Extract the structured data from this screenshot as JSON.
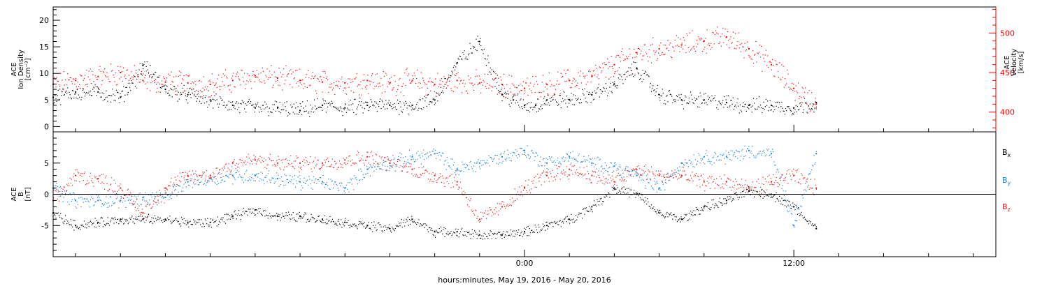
{
  "chart_data": [
    {
      "type": "scatter",
      "xlabel": "hours:minutes, May 19, 2016 - May 20, 2016",
      "x_unit": "hours relative to 2016-05-20 00:00 UT",
      "xlim": [
        -21,
        21
      ],
      "x_ticks": [
        {
          "x": 0,
          "label": "0:00"
        },
        {
          "x": 12,
          "label": "12:00"
        }
      ],
      "ylabel_left": [
        "ACE",
        "Ion Density",
        "[cm⁻³]"
      ],
      "ylim_left": [
        -1,
        22.5
      ],
      "yticks_left": [
        0,
        5,
        10,
        15,
        20
      ],
      "ylabel_right": [
        "ACE",
        "Velocity",
        "[km/s]"
      ],
      "ylim_right": [
        375,
        533
      ],
      "yticks_right": [
        400,
        450,
        500
      ],
      "grid": false,
      "series": [
        {
          "axis": "left",
          "color": "#000000",
          "x": [
            -21,
            -20,
            -19,
            -18,
            -17,
            -16,
            -15,
            -14,
            -13,
            -12,
            -11,
            -10,
            -9,
            -8,
            -7,
            -6,
            -5,
            -4,
            -3,
            -2,
            -1,
            -0.5,
            0,
            0.5,
            1,
            2,
            3,
            4,
            5,
            6,
            7,
            8,
            9,
            10,
            11,
            12,
            13
          ],
          "y": [
            5.5,
            6.5,
            6.5,
            5.5,
            11.5,
            7,
            6,
            5,
            4,
            3.5,
            3.5,
            3,
            4,
            3.5,
            4,
            4,
            4,
            5,
            12,
            16,
            6,
            5,
            4,
            4,
            5,
            5,
            6,
            8,
            11,
            6,
            5,
            5,
            4.5,
            4,
            4,
            3.5,
            4.5
          ]
        },
        {
          "axis": "right",
          "color": "#ff0000",
          "x": [
            -21,
            -20,
            -19,
            -18,
            -17,
            -16,
            -15,
            -14,
            -13,
            -12,
            -11,
            -10,
            -9,
            -8,
            -7,
            -6,
            -5,
            -4,
            -3,
            -2,
            -1,
            0,
            1,
            2,
            3,
            4,
            5,
            6,
            7,
            8,
            9,
            10,
            11,
            12,
            13
          ],
          "y": [
            435,
            440,
            445,
            450,
            440,
            438,
            437,
            435,
            440,
            446,
            443,
            440,
            438,
            437,
            440,
            437,
            440,
            435,
            440,
            437,
            435,
            430,
            435,
            440,
            445,
            460,
            475,
            480,
            485,
            490,
            495,
            480,
            460,
            430,
            410
          ]
        }
      ]
    },
    {
      "type": "scatter",
      "xlabel": "hours:minutes, May 19, 2016 - May 20, 2016",
      "xlim": [
        -21,
        21
      ],
      "ylabel": [
        "ACE",
        "B",
        "[nT]"
      ],
      "ylim": [
        -10,
        10
      ],
      "yticks": [
        -5,
        0,
        5
      ],
      "zero_line": true,
      "grid": false,
      "legend_placement": "right",
      "series": [
        {
          "name": "Bx",
          "color": "#000000",
          "x": [
            -21,
            -20,
            -19,
            -18,
            -17,
            -16,
            -15,
            -14,
            -13,
            -12,
            -11,
            -10,
            -9,
            -8,
            -7,
            -6,
            -5,
            -4,
            -3,
            -2,
            -1,
            0,
            1,
            2,
            3,
            4,
            5,
            6,
            7,
            8,
            9,
            10,
            11,
            12,
            13
          ],
          "y": [
            -3,
            -5,
            -4.5,
            -4,
            -4,
            -4,
            -4.5,
            -4.5,
            -3.5,
            -2.5,
            -3.5,
            -3.5,
            -4,
            -4.5,
            -5,
            -5.5,
            -4,
            -6,
            -6,
            -6.5,
            -6.5,
            -6,
            -5,
            -4,
            -2,
            1,
            0,
            -3,
            -4,
            -2,
            -1,
            0.5,
            0,
            -2,
            -5.5
          ]
        },
        {
          "name": "By",
          "color": "#1e7fd6",
          "x": [
            -21,
            -20,
            -19,
            -18,
            -17,
            -16,
            -15,
            -14,
            -13,
            -12,
            -11,
            -10,
            -9,
            -8,
            -7,
            -6,
            -5,
            -4,
            -3,
            -2,
            -1,
            0,
            1,
            2,
            3,
            4,
            5,
            6,
            7,
            8,
            9,
            10,
            11,
            12,
            13
          ],
          "y": [
            1,
            -1,
            -1,
            -1,
            -0.5,
            -0.5,
            2,
            2.5,
            3,
            3,
            2.5,
            2,
            2,
            1,
            4,
            5,
            6,
            6.5,
            4,
            5,
            6,
            7,
            5,
            6,
            5,
            4.5,
            3,
            1,
            5,
            6,
            6,
            7,
            6.5,
            -5,
            6.5
          ]
        },
        {
          "name": "Bz",
          "color": "#e02020",
          "x": [
            -21,
            -20,
            -19,
            -18,
            -17,
            -16,
            -15,
            -14,
            -13,
            -12,
            -11,
            -10,
            -9,
            -8,
            -7,
            -6,
            -5,
            -4,
            -3,
            -2,
            -1,
            0,
            1,
            2,
            3,
            4,
            5,
            6,
            7,
            8,
            9,
            10,
            11,
            12,
            13
          ],
          "y": [
            -1,
            3,
            2.5,
            1,
            -3,
            1,
            3,
            3,
            5,
            5.5,
            5,
            5,
            5,
            5.5,
            6,
            5,
            4,
            3,
            2,
            -4,
            -2,
            1,
            3,
            4,
            3,
            2,
            4,
            3,
            3,
            2,
            2,
            1,
            2,
            3,
            1
          ]
        }
      ]
    }
  ],
  "legend": [
    {
      "label": "B",
      "sub": "x",
      "color": "#000000"
    },
    {
      "label": "B",
      "sub": "y",
      "color": "#1e7fd6"
    },
    {
      "label": "B",
      "sub": "z",
      "color": "#e02020"
    }
  ]
}
